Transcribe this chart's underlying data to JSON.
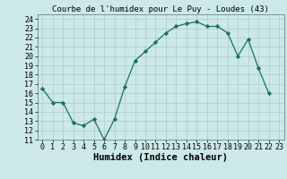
{
  "x": [
    0,
    1,
    2,
    3,
    4,
    5,
    6,
    7,
    8,
    9,
    10,
    11,
    12,
    13,
    14,
    15,
    16,
    17,
    18,
    19,
    20,
    21,
    22,
    23
  ],
  "y": [
    16.5,
    15.0,
    15.0,
    12.8,
    12.5,
    13.2,
    11.0,
    13.2,
    16.7,
    19.5,
    20.5,
    21.5,
    22.5,
    23.2,
    23.5,
    23.7,
    23.2,
    23.2,
    22.5,
    20.0,
    21.8,
    18.7,
    16.0,
    null
  ],
  "title": "Courbe de l'humidex pour Le Puy - Loudes (43)",
  "xlabel": "Humidex (Indice chaleur)",
  "ylabel": "",
  "ylim": [
    11,
    24.5
  ],
  "xlim": [
    -0.5,
    23.5
  ],
  "yticks": [
    11,
    12,
    13,
    14,
    15,
    16,
    17,
    18,
    19,
    20,
    21,
    22,
    23,
    24
  ],
  "xticks": [
    0,
    1,
    2,
    3,
    4,
    5,
    6,
    7,
    8,
    9,
    10,
    11,
    12,
    13,
    14,
    15,
    16,
    17,
    18,
    19,
    20,
    21,
    22,
    23
  ],
  "line_color": "#1a7060",
  "marker_color": "#1a7060",
  "bg_color": "#cce8e8",
  "grid_color": "#aacccc",
  "title_fontsize": 6.5,
  "label_fontsize": 7.5,
  "tick_fontsize": 6.0
}
